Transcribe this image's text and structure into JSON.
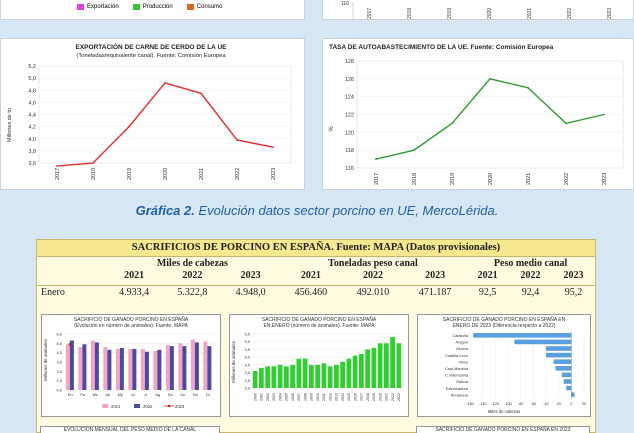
{
  "legend_top": {
    "items": [
      {
        "label": "Exportación",
        "color": "#e040e0"
      },
      {
        "label": "Producción",
        "color": "#39c339"
      },
      {
        "label": "Consumo",
        "color": "#e0651a"
      }
    ]
  },
  "top_right_partial": {
    "first_tick": "116",
    "years": [
      "2017",
      "2018",
      "2019",
      "2020",
      "2021",
      "2022",
      "2023"
    ]
  },
  "caption": {
    "bold": "Gráfica 2.",
    "rest": " Evolución datos sector porcino en UE, MercoLérida."
  },
  "chart_data": [
    {
      "type": "line",
      "title": "EXPORTACIÓN DE CARNE DE CERDO DE LA UE",
      "subtitle": "(Toneladas/equivalente canal). Fuente: Comisión Europea",
      "ylabel": "Millones de tn",
      "x": [
        "2017",
        "2018",
        "2019",
        "2020",
        "2021",
        "2022",
        "2023"
      ],
      "values": [
        3.55,
        3.6,
        4.2,
        4.92,
        4.75,
        3.98,
        3.86
      ],
      "ylim": [
        3.6,
        5.2
      ],
      "yticks": [
        "3,6",
        "3,8",
        "4,0",
        "4,2",
        "4,4",
        "4,6",
        "4,8",
        "5,0",
        "5,2"
      ],
      "color": "#e03030"
    },
    {
      "type": "line",
      "title": "TASA DE AUTOABASTECIMIENTO DE LA UE. Fuente: Comisión Europea",
      "ylabel": "%",
      "x": [
        "2017",
        "2018",
        "2019",
        "2020",
        "2021",
        "2022",
        "2023"
      ],
      "values": [
        117,
        118,
        121,
        126,
        125,
        121,
        122
      ],
      "ylim": [
        116,
        128
      ],
      "yticks": [
        "116",
        "118",
        "120",
        "122",
        "124",
        "126",
        "128"
      ],
      "color": "#2f9a2f"
    },
    {
      "type": "bar",
      "title": "SACRIFICIO DE GANADO PORCINO EN ESPAÑA",
      "subtitle": "(Evolución en número de animales). Fuente: MAPA",
      "ylabel": "Millones de animales",
      "categories": [
        "En",
        "Fe",
        "Mz",
        "Ab",
        "My",
        "Jn",
        "Jl",
        "Ag",
        "Se",
        "Oc",
        "No",
        "Di"
      ],
      "series": [
        {
          "name": "2021",
          "values": [
            4.9,
            4.6,
            5.3,
            4.6,
            4.4,
            4.4,
            4.4,
            4.2,
            4.8,
            5.0,
            5.4,
            5.2
          ],
          "color": "#f2a6c4"
        },
        {
          "name": "2022",
          "values": [
            5.3,
            4.9,
            5.1,
            4.3,
            4.5,
            4.4,
            4.1,
            4.3,
            4.7,
            4.7,
            5.1,
            4.7
          ],
          "color": "#4a4aa0"
        },
        {
          "name": "2023",
          "values": [
            4.9,
            null,
            null,
            null,
            null,
            null,
            null,
            null,
            null,
            null,
            null,
            null
          ],
          "color": "#c02020"
        }
      ],
      "ylim": [
        0,
        6
      ],
      "yticks": [
        "0,0",
        "0,5",
        "1,0",
        "1,5",
        "2,0",
        "2,5",
        "3,0",
        "3,5",
        "4,0",
        "4,5",
        "5,0",
        "5,5",
        "6,0"
      ]
    },
    {
      "type": "bar",
      "title": "SACRIFICIO DE GANADO PORCINO EN ESPAÑA",
      "subtitle": "EN ENERO (número de animales). Fuente: MAPA",
      "ylabel": "Millones de animales",
      "categories": [
        "2000",
        "2001",
        "2002",
        "2003",
        "2004",
        "2005",
        "2006",
        "2007",
        "2008",
        "2009",
        "2010",
        "2011",
        "2012",
        "2013",
        "2014",
        "2015",
        "2016",
        "2017",
        "2018",
        "2019",
        "2020",
        "2021",
        "2022",
        "2023"
      ],
      "values": [
        3.1,
        3.3,
        3.4,
        3.4,
        3.5,
        3.4,
        3.5,
        3.9,
        3.9,
        3.5,
        3.5,
        3.6,
        3.4,
        3.5,
        3.7,
        3.9,
        4.1,
        4.2,
        4.5,
        4.6,
        4.9,
        4.9,
        5.3,
        4.9
      ],
      "ylim": [
        2.0,
        5.5
      ],
      "yticks": [
        "2,0",
        "2,5",
        "3,0",
        "3,5",
        "4,0",
        "4,5",
        "5,0",
        "5,5"
      ],
      "color": "#2fd02f"
    },
    {
      "type": "bar",
      "title": "SACRIFICIO DE GANADO PORCINO EN ESPAÑA EN",
      "subtitle": "ENERO DE 2023 (Diferencia respecto a 2022)",
      "xlabel": "Miles de cabezas",
      "categories": [
        "Cataluña",
        "Aragón",
        "Murcia",
        "Castilla-León",
        "Otros",
        "Cast-Mancha",
        "C.Valenciana",
        "Galicia",
        "Extremadura",
        "Andalucía"
      ],
      "values": [
        -155,
        -90,
        -40,
        -40,
        -28,
        -25,
        -15,
        -12,
        -8,
        5
      ],
      "xlim": [
        -160,
        20
      ],
      "xticks": [
        "-160",
        "-140",
        "-120",
        "-100",
        "-80",
        "-60",
        "-40",
        "-20",
        "0",
        "20"
      ],
      "color": "#5aa0e0"
    }
  ],
  "table": {
    "title": "SACRIFICIOS DE PORCINO EN ESPAÑA. Fuente: MAPA (Datos provisionales)",
    "groups": [
      "Miles de cabezas",
      "Toneladas peso canal",
      "Peso medio canal"
    ],
    "years": [
      "2021",
      "2022",
      "2023",
      "2021",
      "2022",
      "2023",
      "2021",
      "2022",
      "2023"
    ],
    "row_label": "Enero",
    "row_values": [
      "4.933,4",
      "5.322,8",
      "4.948,0",
      "456.460",
      "492.010",
      "471.187",
      "92,5",
      "92,4",
      "95,2"
    ]
  },
  "bottom_partial": {
    "left_title": "EVOLUCIÓN MENSUAL DEL PESO MEDIO DE LA CANAL",
    "right_title": "SACRIFICIO DE GANADO PORCINO EN ESPAÑA EN 2023"
  }
}
